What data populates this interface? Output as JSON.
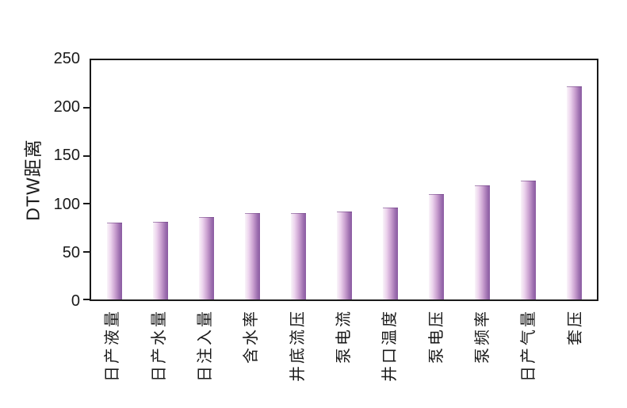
{
  "chart_data": {
    "type": "bar",
    "title": "",
    "xlabel": "",
    "ylabel": "DTW距离",
    "categories": [
      "日产液量",
      "日产水量",
      "日注入量",
      "含水率",
      "井底流压",
      "泵电流",
      "井口温度",
      "泵电压",
      "泵频率",
      "日产气量",
      "套压"
    ],
    "values": [
      80,
      81,
      86,
      90,
      90,
      92,
      96,
      110,
      119,
      124,
      223
    ],
    "ylim": [
      0,
      250
    ],
    "yticks": [
      0,
      50,
      100,
      150,
      200,
      250
    ],
    "grid": false,
    "legend": null,
    "bar_gradient": [
      "#f9f4f9",
      "#ecd3ed",
      "#c99fcf",
      "#9e70b0",
      "#8a5ba1"
    ],
    "axis_color": "#1a1a1a",
    "background_color": "#ffffff"
  }
}
